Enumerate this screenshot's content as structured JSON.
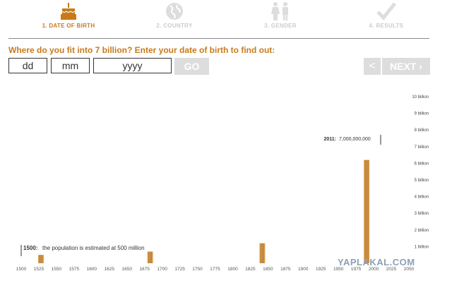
{
  "steps": [
    {
      "label": "1. DATE OF BIRTH",
      "icon": "cake-icon",
      "active": true
    },
    {
      "label": "2. COUNTRY",
      "icon": "globe-icon",
      "active": false
    },
    {
      "label": "3. GENDER",
      "icon": "gender-icon",
      "active": false
    },
    {
      "label": "4. RESULTS",
      "icon": "checkmark-icon",
      "active": false
    }
  ],
  "form": {
    "heading": "Where do you fit into 7 billion? Enter your date of birth to find out:",
    "day_placeholder": "dd",
    "month_placeholder": "mm",
    "year_placeholder": "yyyy",
    "go_label": "GO",
    "prev_label": "<",
    "next_label": "NEXT"
  },
  "colors": {
    "accent": "#c87a1a",
    "disabled": "#dddddd",
    "bar": "#d9a35c",
    "bar_stripe": "#a86a1c"
  },
  "chart_data": {
    "type": "bar",
    "x_ticks": [
      "1500",
      "1525",
      "1550",
      "1575",
      "1600",
      "1625",
      "1650",
      "1675",
      "1700",
      "1725",
      "1750",
      "1775",
      "1800",
      "1825",
      "1850",
      "1875",
      "1900",
      "1925",
      "1950",
      "1975",
      "2000",
      "2025",
      "2050"
    ],
    "y_ticks": [
      "1 billion",
      "2 billion",
      "3 billion",
      "4 billion",
      "5 billion",
      "6 billion",
      "7 billion",
      "8 billion",
      "9 billion",
      "10 billion"
    ],
    "xlim": [
      1500,
      2050
    ],
    "ylim": [
      0,
      10
    ],
    "bars": [
      {
        "x": 1528,
        "value": 0.5
      },
      {
        "x": 1683,
        "value": 0.7
      },
      {
        "x": 1842,
        "value": 1.2
      },
      {
        "x": 1990,
        "value": 6.2
      }
    ],
    "annotation_start": {
      "year": "1500:",
      "text": "the population is estimated at 500 million"
    },
    "annotation_now": {
      "year": "2011:",
      "text": "7,000,000,000"
    }
  },
  "watermark": "YAPLAKAL.COM"
}
